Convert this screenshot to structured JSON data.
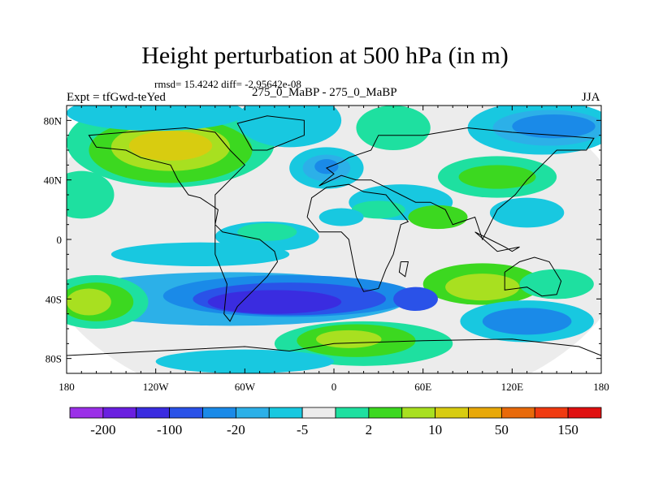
{
  "chart_data": {
    "type": "heatmap",
    "title": "Height perturbation at 500 hPa (in m)",
    "stats_text": "rmsd= 15.4242 diff= -2.95642e-08",
    "left_label": "Expt = tfGwd-teYed",
    "center_label": "275_0_MaBP - 275_0_MaBP",
    "right_label": "JJA",
    "x_ticks": [
      "180",
      "120W",
      "60W",
      "0",
      "60E",
      "120E",
      "180"
    ],
    "y_ticks": [
      "80N",
      "40N",
      "0",
      "40S",
      "80S"
    ],
    "lon_range": [
      -180,
      180
    ],
    "lat_range": [
      -90,
      90
    ],
    "colorbar": {
      "colors": [
        "#9b30e8",
        "#6a1fe0",
        "#3a2ce0",
        "#2a52e8",
        "#1a8ae8",
        "#2cb0e8",
        "#18c8e0",
        "#ececec",
        "#1ee0a0",
        "#3cd820",
        "#a8e020",
        "#d8cc10",
        "#e8a808",
        "#e86a0a",
        "#f03a10",
        "#e01010"
      ],
      "labels": [
        "-200",
        "-100",
        "-20",
        "-5",
        "2",
        "10",
        "50",
        "150"
      ]
    },
    "blobs": [
      {
        "lon": 0,
        "lat": 0,
        "rlon": 200,
        "rlat": 120,
        "c": 7
      },
      {
        "lon": -110,
        "lat": 65,
        "rlon": 70,
        "rlat": 30,
        "c": 8
      },
      {
        "lon": -110,
        "lat": 60,
        "rlon": 55,
        "rlat": 22,
        "c": 9
      },
      {
        "lon": -110,
        "lat": 62,
        "rlon": 40,
        "rlat": 16,
        "c": 10
      },
      {
        "lon": -110,
        "lat": 63,
        "rlon": 28,
        "rlat": 10,
        "c": 11
      },
      {
        "lon": -120,
        "lat": 85,
        "rlon": 60,
        "rlat": 12,
        "c": 6
      },
      {
        "lon": -30,
        "lat": 80,
        "rlon": 35,
        "rlat": 18,
        "c": 6
      },
      {
        "lon": 40,
        "lat": 75,
        "rlon": 25,
        "rlat": 15,
        "c": 8
      },
      {
        "lon": 140,
        "lat": 75,
        "rlon": 50,
        "rlat": 18,
        "c": 6
      },
      {
        "lon": 145,
        "lat": 75,
        "rlon": 38,
        "rlat": 12,
        "c": 5
      },
      {
        "lon": 148,
        "lat": 76,
        "rlon": 28,
        "rlat": 8,
        "c": 4
      },
      {
        "lon": -5,
        "lat": 48,
        "rlon": 25,
        "rlat": 14,
        "c": 6
      },
      {
        "lon": -5,
        "lat": 48,
        "rlon": 16,
        "rlat": 9,
        "c": 5
      },
      {
        "lon": -5,
        "lat": 49,
        "rlon": 8,
        "rlat": 5,
        "c": 4
      },
      {
        "lon": 110,
        "lat": 42,
        "rlon": 40,
        "rlat": 14,
        "c": 8
      },
      {
        "lon": 110,
        "lat": 42,
        "rlon": 26,
        "rlat": 8,
        "c": 9
      },
      {
        "lon": -170,
        "lat": 30,
        "rlon": 22,
        "rlat": 16,
        "c": 8
      },
      {
        "lon": 45,
        "lat": 25,
        "rlon": 35,
        "rlat": 12,
        "c": 6
      },
      {
        "lon": 30,
        "lat": 20,
        "rlon": 18,
        "rlat": 6,
        "c": 8
      },
      {
        "lon": 70,
        "lat": 15,
        "rlon": 20,
        "rlat": 8,
        "c": 9
      },
      {
        "lon": 130,
        "lat": 18,
        "rlon": 25,
        "rlat": 10,
        "c": 6
      },
      {
        "lon": -45,
        "lat": 2,
        "rlon": 35,
        "rlat": 10,
        "c": 6
      },
      {
        "lon": -45,
        "lat": 5,
        "rlon": 20,
        "rlat": 6,
        "c": 8
      },
      {
        "lon": 5,
        "lat": 15,
        "rlon": 15,
        "rlat": 6,
        "c": 6
      },
      {
        "lon": -70,
        "lat": -40,
        "rlon": 120,
        "rlat": 18,
        "c": 5
      },
      {
        "lon": -30,
        "lat": -38,
        "rlon": 85,
        "rlat": 14,
        "c": 4
      },
      {
        "lon": -30,
        "lat": -40,
        "rlon": 65,
        "rlat": 11,
        "c": 3
      },
      {
        "lon": -40,
        "lat": -42,
        "rlon": 45,
        "rlat": 8,
        "c": 2
      },
      {
        "lon": -160,
        "lat": -42,
        "rlon": 35,
        "rlat": 18,
        "c": 8
      },
      {
        "lon": -160,
        "lat": -42,
        "rlon": 25,
        "rlat": 13,
        "c": 9
      },
      {
        "lon": -165,
        "lat": -42,
        "rlon": 15,
        "rlat": 9,
        "c": 10
      },
      {
        "lon": -90,
        "lat": -10,
        "rlon": 60,
        "rlat": 8,
        "c": 6
      },
      {
        "lon": 20,
        "lat": -70,
        "rlon": 60,
        "rlat": 15,
        "c": 8
      },
      {
        "lon": 15,
        "lat": -68,
        "rlon": 40,
        "rlat": 11,
        "c": 9
      },
      {
        "lon": 10,
        "lat": -67,
        "rlon": 22,
        "rlat": 6,
        "c": 10
      },
      {
        "lon": 100,
        "lat": -30,
        "rlon": 40,
        "rlat": 14,
        "c": 9
      },
      {
        "lon": 100,
        "lat": -32,
        "rlon": 25,
        "rlat": 9,
        "c": 10
      },
      {
        "lon": 130,
        "lat": -55,
        "rlon": 45,
        "rlat": 14,
        "c": 6
      },
      {
        "lon": 130,
        "lat": -55,
        "rlon": 30,
        "rlat": 9,
        "c": 4
      },
      {
        "lon": 150,
        "lat": -30,
        "rlon": 25,
        "rlat": 10,
        "c": 8
      },
      {
        "lon": 55,
        "lat": -40,
        "rlon": 15,
        "rlat": 8,
        "c": 3
      },
      {
        "lon": -60,
        "lat": -82,
        "rlon": 60,
        "rlat": 8,
        "c": 6
      }
    ]
  }
}
